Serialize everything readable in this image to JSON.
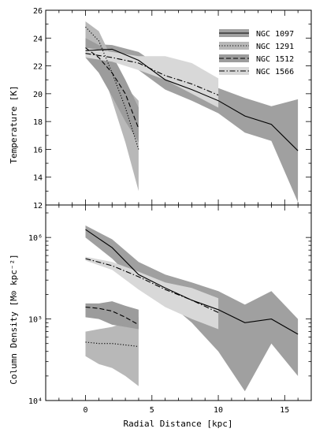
{
  "chart_data": [
    {
      "type": "line",
      "ylabel": "Temperature [K]",
      "xlabel": "",
      "xlim": [
        -3,
        17
      ],
      "ylim": [
        12,
        26
      ],
      "yticks": [
        12,
        14,
        16,
        18,
        20,
        22,
        24,
        26
      ],
      "grid": false,
      "legend": "top-right",
      "series": [
        {
          "name": "NGC 1097",
          "style": "solid",
          "x": [
            0,
            2,
            4,
            6,
            8,
            10,
            12,
            14,
            16
          ],
          "y": [
            23.1,
            23.2,
            22.4,
            21.0,
            20.3,
            19.5,
            18.4,
            17.8,
            15.9
          ],
          "band_lo": [
            22.6,
            22.8,
            21.7,
            20.3,
            19.5,
            18.6,
            17.2,
            16.6,
            12.2
          ],
          "band_hi": [
            23.6,
            23.5,
            23.0,
            21.7,
            21.0,
            20.4,
            19.7,
            19.1,
            19.6
          ],
          "band_color": "#a0a0a0"
        },
        {
          "name": "NGC 1291",
          "style": "dotted",
          "x": [
            0,
            1,
            2,
            3,
            4
          ],
          "y": [
            24.8,
            23.8,
            21.5,
            19.0,
            16.0
          ],
          "band_lo": [
            23.8,
            22.5,
            19.5,
            16.5,
            13.0
          ],
          "band_hi": [
            25.2,
            24.5,
            22.5,
            20.5,
            19.5
          ],
          "band_color": "#b8b8b8"
        },
        {
          "name": "NGC 1512",
          "style": "dashed",
          "x": [
            0,
            1,
            2,
            3,
            4
          ],
          "y": [
            23.3,
            22.6,
            21.5,
            20.0,
            17.5
          ],
          "band_lo": [
            22.6,
            21.5,
            19.8,
            18.0,
            16.5
          ],
          "band_hi": [
            24.0,
            23.5,
            22.8,
            21.0,
            19.0
          ],
          "band_color": "#9c9c9c"
        },
        {
          "name": "NGC 1566",
          "style": "dashdot",
          "x": [
            0,
            2,
            4,
            6,
            8,
            10
          ],
          "y": [
            22.9,
            22.6,
            22.2,
            21.3,
            20.7,
            19.9
          ],
          "band_lo": [
            22.6,
            22.3,
            21.7,
            21.0,
            20.0,
            19.0
          ],
          "band_hi": [
            23.3,
            23.0,
            22.7,
            22.7,
            22.2,
            21.1
          ],
          "band_color": "#d8d8d8"
        }
      ]
    },
    {
      "type": "line",
      "ylabel": "Column Density [M⊙ kpc⁻²]",
      "xlabel": "Radial Distance [kpc]",
      "xlim": [
        -3,
        17
      ],
      "ylim": [
        10000,
        2500000
      ],
      "yscale": "log",
      "yticks": [
        10000,
        100000,
        1000000
      ],
      "ytick_labels": [
        "10⁴",
        "10⁵",
        "10⁶"
      ],
      "xticks": [
        0,
        5,
        10,
        15
      ],
      "xtick_labels": [
        "0",
        "5",
        "10",
        "15"
      ],
      "grid": false,
      "series": [
        {
          "name": "NGC 1097",
          "style": "solid",
          "x": [
            0,
            2,
            4,
            6,
            8,
            10,
            12,
            14,
            16
          ],
          "y": [
            1250000,
            750000,
            350000,
            240000,
            170000,
            130000,
            90000,
            100000,
            65000
          ],
          "band_lo": [
            1000000,
            550000,
            260000,
            170000,
            90000,
            40000,
            13000,
            50000,
            20000
          ],
          "band_hi": [
            1400000,
            950000,
            500000,
            350000,
            280000,
            220000,
            150000,
            220000,
            100000
          ],
          "band_color": "#a0a0a0"
        },
        {
          "name": "NGC 1291",
          "style": "dotted",
          "x": [
            0,
            1,
            2,
            3,
            4
          ],
          "y": [
            52000,
            50000,
            50000,
            48000,
            46000
          ],
          "band_lo": [
            35000,
            28000,
            25000,
            20000,
            15000
          ],
          "band_hi": [
            70000,
            75000,
            80000,
            90000,
            105000
          ],
          "band_color": "#b8b8b8"
        },
        {
          "name": "NGC 1512",
          "style": "dashed",
          "x": [
            0,
            1,
            2,
            3,
            4
          ],
          "y": [
            140000,
            135000,
            125000,
            105000,
            85000
          ],
          "band_lo": [
            105000,
            100000,
            85000,
            80000,
            75000
          ],
          "band_hi": [
            155000,
            155000,
            165000,
            145000,
            130000
          ],
          "band_color": "#9c9c9c"
        },
        {
          "name": "NGC 1566",
          "style": "dashdot",
          "x": [
            0,
            2,
            4,
            6,
            8,
            10
          ],
          "y": [
            550000,
            450000,
            330000,
            230000,
            170000,
            120000
          ],
          "band_lo": [
            520000,
            400000,
            230000,
            140000,
            100000,
            75000
          ],
          "band_hi": [
            580000,
            500000,
            380000,
            280000,
            240000,
            180000
          ],
          "band_color": "#d8d8d8"
        }
      ]
    }
  ]
}
